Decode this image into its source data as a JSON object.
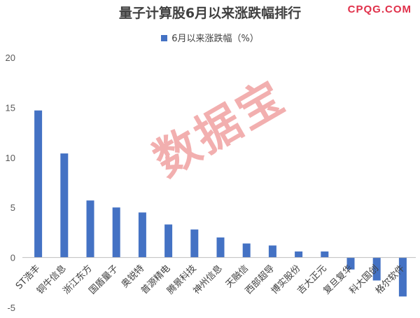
{
  "chart_data": {
    "type": "bar",
    "title": "量子计算股6月以来涨跌幅排行",
    "categories": [
      "ST浩丰",
      "铜牛信息",
      "浙江东方",
      "国盾量子",
      "奥锐特",
      "普源精电",
      "腾景科技",
      "神州信息",
      "天融信",
      "西部超导",
      "博实股份",
      "吉大正元",
      "复旦复华",
      "科大国创",
      "格尔软件"
    ],
    "series": [
      {
        "name": "6月以来涨跌幅（%）",
        "values": [
          14.7,
          10.4,
          5.7,
          5.0,
          4.5,
          3.3,
          2.8,
          2.0,
          1.4,
          1.2,
          0.6,
          0.6,
          -1.2,
          -2.3,
          -3.9
        ],
        "color": "#4472C4"
      }
    ],
    "ylim": [
      -5,
      20
    ],
    "yticks": [
      "-5",
      "0",
      "5",
      "10",
      "15",
      "20"
    ],
    "legend_position": "top-center",
    "grid": false
  },
  "branding": {
    "site_label": "CPQG.COM",
    "site_color": "#e0304a",
    "watermark_text": "数据宝",
    "watermark_color": "#e24e4e"
  }
}
